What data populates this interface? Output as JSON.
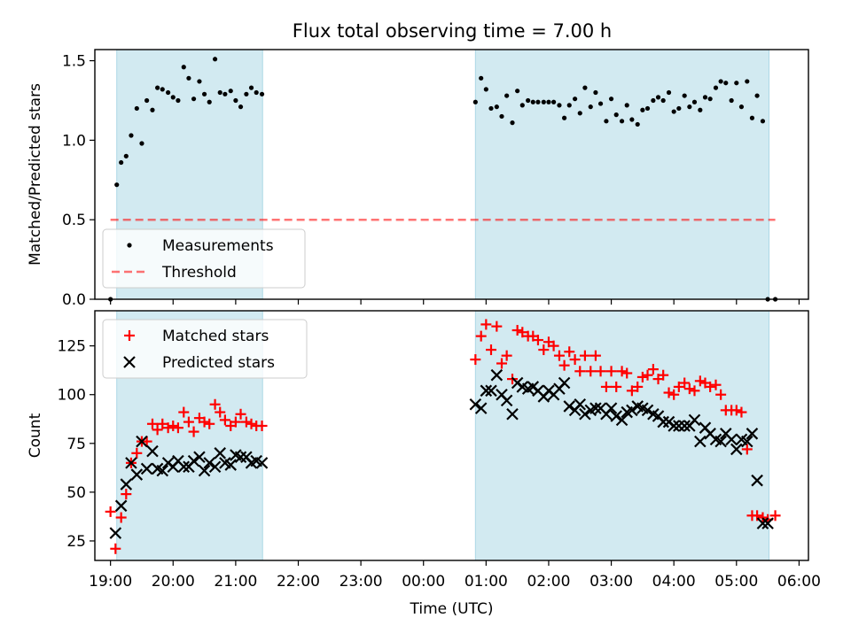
{
  "figure_title": "Flux total observing time = 7.00 h",
  "colors": {
    "shade": "#add8e6",
    "measurement": "#000000",
    "threshold": "#ff0000",
    "matched": "#ff0000",
    "predicted": "#000000"
  },
  "chart_data": [
    {
      "type": "scatter",
      "name": "ratio-panel",
      "ylabel": "Matched/Predicted stars",
      "xlabel": "",
      "xlim": [
        18.75,
        30.15
      ],
      "ylim": [
        0,
        1.57
      ],
      "yticks": [
        0,
        0.5,
        1.0,
        1.5
      ],
      "ytick_labels": [
        "0.0",
        "0.5",
        "1.0",
        "1.5"
      ],
      "shaded_intervals": [
        [
          19.1,
          21.43
        ],
        [
          24.83,
          29.52
        ]
      ],
      "threshold": {
        "name": "Threshold",
        "value": 0.5,
        "x_range": [
          19.0,
          29.62
        ]
      },
      "legend": {
        "position": "lower-left",
        "entries": [
          "Measurements",
          "Threshold"
        ]
      },
      "series": [
        {
          "name": "Measurements",
          "x": [
            19.0,
            19.1,
            19.17,
            19.25,
            19.33,
            19.42,
            19.5,
            19.58,
            19.67,
            19.75,
            19.83,
            19.92,
            20.0,
            20.08,
            20.17,
            20.25,
            20.33,
            20.42,
            20.5,
            20.58,
            20.67,
            20.75,
            20.83,
            20.92,
            21.0,
            21.08,
            21.17,
            21.25,
            21.33,
            21.42,
            24.83,
            24.92,
            25.0,
            25.08,
            25.17,
            25.25,
            25.33,
            25.42,
            25.5,
            25.58,
            25.67,
            25.75,
            25.83,
            25.92,
            26.0,
            26.08,
            26.17,
            26.25,
            26.33,
            26.42,
            26.5,
            26.58,
            26.67,
            26.75,
            26.83,
            26.92,
            27.0,
            27.08,
            27.17,
            27.25,
            27.33,
            27.42,
            27.5,
            27.58,
            27.67,
            27.75,
            27.83,
            27.92,
            28.0,
            28.08,
            28.17,
            28.25,
            28.33,
            28.42,
            28.5,
            28.58,
            28.67,
            28.75,
            28.83,
            28.92,
            29.0,
            29.08,
            29.17,
            29.25,
            29.33,
            29.42,
            29.5,
            29.62
          ],
          "y": [
            0.0,
            0.72,
            0.86,
            0.9,
            1.03,
            1.2,
            0.98,
            1.25,
            1.19,
            1.33,
            1.32,
            1.3,
            1.27,
            1.25,
            1.46,
            1.39,
            1.26,
            1.37,
            1.29,
            1.24,
            1.51,
            1.3,
            1.29,
            1.31,
            1.25,
            1.21,
            1.29,
            1.33,
            1.3,
            1.29,
            1.24,
            1.39,
            1.32,
            1.2,
            1.21,
            1.15,
            1.28,
            1.11,
            1.31,
            1.22,
            1.25,
            1.24,
            1.24,
            1.24,
            1.24,
            1.24,
            1.22,
            1.14,
            1.22,
            1.26,
            1.17,
            1.33,
            1.21,
            1.3,
            1.23,
            1.12,
            1.26,
            1.16,
            1.12,
            1.22,
            1.13,
            1.1,
            1.19,
            1.2,
            1.25,
            1.27,
            1.25,
            1.3,
            1.18,
            1.2,
            1.28,
            1.21,
            1.24,
            1.19,
            1.27,
            1.26,
            1.33,
            1.37,
            1.36,
            1.25,
            1.36,
            1.21,
            1.37,
            1.14,
            1.28,
            1.12,
            0.0,
            0.0
          ]
        }
      ]
    },
    {
      "type": "scatter",
      "name": "count-panel",
      "xlabel": "Time (UTC)",
      "ylabel": "Count",
      "xlim": [
        18.75,
        30.15
      ],
      "ylim": [
        15,
        143
      ],
      "yticks": [
        25,
        50,
        75,
        100,
        125
      ],
      "ytick_labels": [
        "25",
        "50",
        "75",
        "100",
        "125"
      ],
      "xticks": [
        19,
        20,
        21,
        22,
        23,
        24,
        25,
        26,
        27,
        28,
        29,
        30
      ],
      "xtick_labels": [
        "19:00",
        "20:00",
        "21:00",
        "22:00",
        "23:00",
        "00:00",
        "01:00",
        "02:00",
        "03:00",
        "04:00",
        "05:00",
        "06:00"
      ],
      "shaded_intervals": [
        [
          19.1,
          21.43
        ],
        [
          24.83,
          29.52
        ]
      ],
      "legend": {
        "position": "upper-left",
        "entries": [
          "Matched stars",
          "Predicted stars"
        ]
      },
      "series": [
        {
          "name": "Matched stars",
          "marker": "plus",
          "x": [
            19.0,
            19.08,
            19.17,
            19.25,
            19.33,
            19.42,
            19.5,
            19.58,
            19.67,
            19.75,
            19.83,
            19.92,
            20.0,
            20.08,
            20.17,
            20.25,
            20.33,
            20.42,
            20.5,
            20.58,
            20.67,
            20.75,
            20.83,
            20.92,
            21.0,
            21.08,
            21.17,
            21.25,
            21.33,
            21.42,
            24.83,
            24.92,
            25.0,
            25.08,
            25.17,
            25.25,
            25.33,
            25.42,
            25.5,
            25.58,
            25.67,
            25.75,
            25.83,
            25.92,
            26.0,
            26.08,
            26.17,
            26.25,
            26.33,
            26.42,
            26.5,
            26.58,
            26.67,
            26.75,
            26.83,
            26.92,
            27.0,
            27.08,
            27.17,
            27.25,
            27.33,
            27.42,
            27.5,
            27.58,
            27.67,
            27.75,
            27.83,
            27.92,
            28.0,
            28.08,
            28.17,
            28.25,
            28.33,
            28.42,
            28.5,
            28.58,
            28.67,
            28.75,
            28.83,
            28.92,
            29.0,
            29.08,
            29.17,
            29.25,
            29.33,
            29.42,
            29.5,
            29.62
          ],
          "y": [
            40,
            21,
            37,
            49,
            65,
            70,
            76,
            76,
            85,
            82,
            85,
            83,
            84,
            83,
            91,
            86,
            81,
            88,
            86,
            85,
            95,
            91,
            87,
            84,
            86,
            90,
            86,
            85,
            84,
            84,
            118,
            130,
            136,
            123,
            135,
            116,
            120,
            108,
            133,
            132,
            130,
            130,
            128,
            123,
            127,
            125,
            120,
            115,
            122,
            118,
            112,
            120,
            112,
            120,
            112,
            104,
            112,
            104,
            112,
            111,
            102,
            104,
            109,
            110,
            113,
            108,
            110,
            101,
            100,
            104,
            106,
            103,
            102,
            107,
            106,
            104,
            105,
            100,
            92,
            92,
            92,
            91,
            72,
            38,
            38,
            37,
            36,
            38
          ]
        },
        {
          "name": "Predicted stars",
          "marker": "x",
          "x": [
            19.08,
            19.17,
            19.25,
            19.33,
            19.42,
            19.5,
            19.58,
            19.67,
            19.75,
            19.83,
            19.92,
            20.0,
            20.08,
            20.17,
            20.25,
            20.33,
            20.42,
            20.5,
            20.58,
            20.67,
            20.75,
            20.83,
            20.92,
            21.0,
            21.08,
            21.17,
            21.25,
            21.33,
            21.42,
            24.83,
            24.92,
            25.0,
            25.08,
            25.17,
            25.25,
            25.33,
            25.42,
            25.5,
            25.58,
            25.67,
            25.75,
            25.83,
            25.92,
            26.0,
            26.08,
            26.17,
            26.25,
            26.33,
            26.42,
            26.5,
            26.58,
            26.67,
            26.75,
            26.83,
            26.92,
            27.0,
            27.08,
            27.17,
            27.25,
            27.33,
            27.42,
            27.5,
            27.58,
            27.67,
            27.75,
            27.83,
            27.92,
            28.0,
            28.08,
            28.17,
            28.25,
            28.33,
            28.42,
            28.5,
            28.58,
            28.67,
            28.75,
            28.83,
            28.92,
            29.0,
            29.08,
            29.17,
            29.25,
            29.33,
            29.42,
            29.5
          ],
          "y": [
            29,
            43,
            54,
            65,
            59,
            76,
            62,
            71,
            62,
            61,
            65,
            63,
            66,
            63,
            63,
            66,
            68,
            61,
            65,
            63,
            70,
            65,
            64,
            69,
            68,
            68,
            65,
            66,
            65,
            95,
            93,
            102,
            102,
            110,
            100,
            97,
            90,
            106,
            104,
            103,
            104,
            102,
            99,
            102,
            100,
            103,
            106,
            94,
            92,
            95,
            90,
            92,
            93,
            93,
            90,
            93,
            89,
            87,
            91,
            92,
            94,
            93,
            92,
            90,
            89,
            86,
            86,
            84,
            84,
            84,
            84,
            87,
            76,
            83,
            80,
            77,
            76,
            80,
            77,
            72,
            77,
            76,
            80,
            56,
            34,
            34
          ]
        }
      ]
    }
  ]
}
